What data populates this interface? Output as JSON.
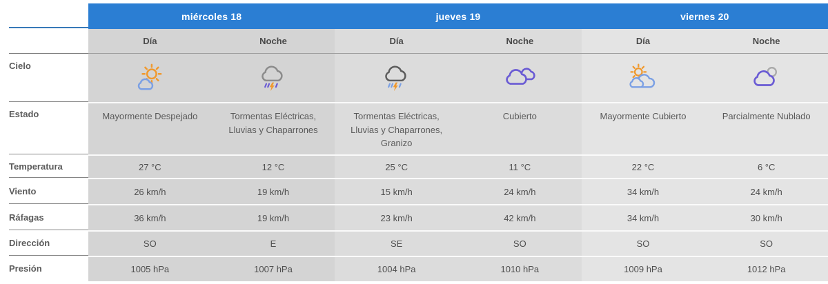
{
  "theme": {
    "header_blue": "#2b7ed3",
    "header_underline_blue": "#3779b8",
    "group_shades": [
      "#d4d4d4",
      "#dcdcdc",
      "#e4e4e4"
    ],
    "orange": "#f0992e",
    "purple": "#6a5bd4",
    "cloud_blue": "#7ba0e4"
  },
  "row_labels": {
    "cielo": "Cielo",
    "estado": "Estado",
    "temperatura": "Temperatura",
    "viento": "Viento",
    "rafagas": "Ráfagas",
    "direccion": "Dirección",
    "presion": "Presión"
  },
  "days": [
    {
      "label": "miércoles 18",
      "parts": [
        {
          "label": "Día",
          "icon": "sun-behind-small-cloud",
          "estado": "Mayormente Despejado",
          "temperatura": "27 °C",
          "viento": "26 km/h",
          "rafagas": "36 km/h",
          "direccion": "SO",
          "presion": "1005 hPa"
        },
        {
          "label": "Noche",
          "icon": "storm-rain-purple-cloud",
          "estado": "Tormentas Eléctricas, Lluvias y Chaparrones",
          "temperatura": "12 °C",
          "viento": "19 km/h",
          "rafagas": "19 km/h",
          "direccion": "E",
          "presion": "1007 hPa"
        }
      ]
    },
    {
      "label": "jueves 19",
      "parts": [
        {
          "label": "Día",
          "icon": "storm-rain-dark-cloud",
          "estado": "Tormentas Eléctricas, Lluvias y Chaparrones, Granizo",
          "temperatura": "25 °C",
          "viento": "15 km/h",
          "rafagas": "23 km/h",
          "direccion": "SE",
          "presion": "1004 hPa"
        },
        {
          "label": "Noche",
          "icon": "overcast-clouds",
          "estado": "Cubierto",
          "temperatura": "11 °C",
          "viento": "24 km/h",
          "rafagas": "42 km/h",
          "direccion": "SO",
          "presion": "1010 hPa"
        }
      ]
    },
    {
      "label": "viernes 20",
      "parts": [
        {
          "label": "Día",
          "icon": "sun-behind-clouds",
          "estado": "Mayormente Cubierto",
          "temperatura": "22 °C",
          "viento": "34 km/h",
          "rafagas": "34 km/h",
          "direccion": "SO",
          "presion": "1009 hPa"
        },
        {
          "label": "Noche",
          "icon": "cloud-moon",
          "estado": "Parcialmente Nublado",
          "temperatura": "6 °C",
          "viento": "24 km/h",
          "rafagas": "30 km/h",
          "direccion": "SO",
          "presion": "1012 hPa"
        }
      ]
    }
  ]
}
